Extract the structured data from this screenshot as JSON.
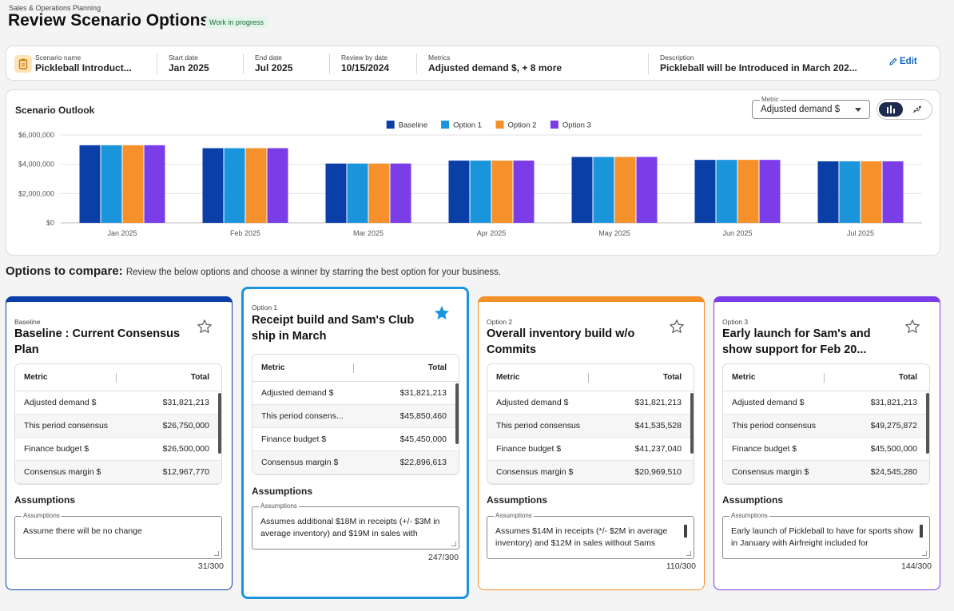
{
  "header": {
    "breadcrumb": "Sales & Operations Planning",
    "title": "Review Scenario Options",
    "status": "Work in progress"
  },
  "scenario": {
    "icon": "clipboard-icon",
    "fields": [
      {
        "label": "Scenario name",
        "value": "Pickleball Introduct..."
      },
      {
        "label": "Start date",
        "value": "Jan 2025"
      },
      {
        "label": "End date",
        "value": "Jul 2025"
      },
      {
        "label": "Review by date",
        "value": "10/15/2024"
      },
      {
        "label": "Metrics",
        "value": "Adjusted demand $, + 8 more"
      },
      {
        "label": "Description",
        "value": "Pickleball will be Introduced in March 202..."
      }
    ],
    "edit_label": "Edit"
  },
  "outlook": {
    "title": "Scenario Outlook",
    "metric_select_label": "Metric",
    "metric_select_value": "Adjusted demand $",
    "view_toggle": [
      "bar-chart-icon",
      "scatter-chart-icon"
    ],
    "active_view": "bar-chart-icon"
  },
  "chart_data": {
    "type": "bar",
    "categories": [
      "Jan 2025",
      "Feb 2025",
      "Mar 2025",
      "Apr 2025",
      "May 2025",
      "Jun 2025",
      "Jul 2025"
    ],
    "series": [
      {
        "name": "Baseline",
        "color": "#0a3fa8",
        "values": [
          5300000,
          5100000,
          4050000,
          4250000,
          4500000,
          4300000,
          4200000
        ]
      },
      {
        "name": "Option 1",
        "color": "#1a95dc",
        "values": [
          5300000,
          5100000,
          4050000,
          4250000,
          4500000,
          4300000,
          4200000
        ]
      },
      {
        "name": "Option 2",
        "color": "#f5902a",
        "values": [
          5300000,
          5100000,
          4050000,
          4250000,
          4500000,
          4300000,
          4200000
        ]
      },
      {
        "name": "Option 3",
        "color": "#7a3de8",
        "values": [
          5300000,
          5100000,
          4050000,
          4250000,
          4500000,
          4300000,
          4200000
        ]
      }
    ],
    "y_ticks": [
      "$0",
      "$2,000,000",
      "$4,000,000",
      "$6,000,000"
    ],
    "ylim": [
      0,
      6000000
    ],
    "grid": true,
    "legend": "top-center"
  },
  "compare": {
    "heading": "Options to compare:",
    "subtext": "Review the below options and choose a winner by starring the best option for your business."
  },
  "options": [
    {
      "label": "Baseline",
      "title": "Baseline : Current Consensus Plan",
      "color": "#0a3fa8",
      "starred": false,
      "col_metric": "Metric",
      "col_total": "Total",
      "rows": [
        {
          "metric": "Adjusted demand $",
          "total": "$31,821,213"
        },
        {
          "metric": "This period consensus",
          "total": "$26,750,000"
        },
        {
          "metric": "Finance budget $",
          "total": "$26,500,000"
        },
        {
          "metric": "Consensus margin $",
          "total": "$12,967,770"
        }
      ],
      "assumptions_heading": "Assumptions",
      "assumptions_label": "Assumptions",
      "assumptions_text": "Assume there will be no change",
      "char_count": "31/300"
    },
    {
      "label": "Option 1",
      "title": "Receipt build and Sam's Club ship in March",
      "color": "#1a95dc",
      "starred": true,
      "col_metric": "Metric",
      "col_total": "Total",
      "rows": [
        {
          "metric": "Adjusted demand $",
          "total": "$31,821,213"
        },
        {
          "metric": "This period consens...",
          "total": "$45,850,460"
        },
        {
          "metric": "Finance budget $",
          "total": "$45,450,000"
        },
        {
          "metric": "Consensus margin $",
          "total": "$22,896,613"
        }
      ],
      "assumptions_heading": "Assumptions",
      "assumptions_label": "Assumptions",
      "assumptions_text": "Assumes additional $18M in receipts (+/- $3M in average inventory) and $19M in sales with",
      "char_count": "247/300"
    },
    {
      "label": "Option 2",
      "title": "Overall inventory build w/o Commits",
      "color": "#f5902a",
      "starred": false,
      "col_metric": "Metric",
      "col_total": "Total",
      "rows": [
        {
          "metric": "Adjusted demand $",
          "total": "$31,821,213"
        },
        {
          "metric": "This period consensus",
          "total": "$41,535,528"
        },
        {
          "metric": "Finance budget $",
          "total": "$41,237,040"
        },
        {
          "metric": "Consensus margin $",
          "total": "$20,969,510"
        }
      ],
      "assumptions_heading": "Assumptions",
      "assumptions_label": "Assumptions",
      "assumptions_text": "Assumes $14M in receipts (*/- $2M in average inventory) and $12M in sales without Sams",
      "char_count": "110/300"
    },
    {
      "label": "Option 3",
      "title": "Early launch for Sam's and show support for Feb 20...",
      "color": "#7a3de8",
      "starred": false,
      "col_metric": "Metric",
      "col_total": "Total",
      "rows": [
        {
          "metric": "Adjusted demand $",
          "total": "$31,821,213"
        },
        {
          "metric": "This period consensus",
          "total": "$49,275,872"
        },
        {
          "metric": "Finance budget $",
          "total": "$45,500,000"
        },
        {
          "metric": "Consensus margin $",
          "total": "$24,545,280"
        }
      ],
      "assumptions_heading": "Assumptions",
      "assumptions_label": "Assumptions",
      "assumptions_text": "Early launch of Pickleball to have for sports show in January with Airfreight included for",
      "char_count": "144/300"
    }
  ]
}
